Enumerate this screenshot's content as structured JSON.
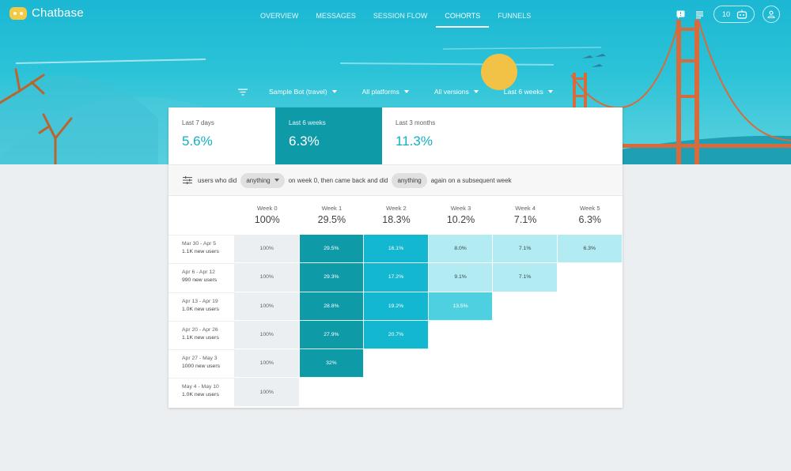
{
  "app": {
    "name": "Chatbase"
  },
  "nav": {
    "tabs": [
      "OVERVIEW",
      "MESSAGES",
      "SESSION FLOW",
      "COHORTS",
      "FUNNELS"
    ],
    "active": "COHORTS"
  },
  "topbar": {
    "bot_count": "10"
  },
  "filters": {
    "bot": "Sample Bot (travel)",
    "platform": "All platforms",
    "version": "All versions",
    "range": "Last 6 weeks"
  },
  "summary": [
    {
      "label": "Last 7 days",
      "value": "5.6%"
    },
    {
      "label": "Last 6 weeks",
      "value": "6.3%"
    },
    {
      "label": "Last 3 months",
      "value": "11.3%"
    }
  ],
  "summary_active": "Last 6 weeks",
  "query": {
    "prefix": "users who did",
    "first_action": "anything",
    "middle": "on week 0, then came back and did",
    "second_action": "anything",
    "suffix": "again on a subsequent week"
  },
  "weeks": [
    {
      "name": "Week 0",
      "pct": "100%"
    },
    {
      "name": "Week 1",
      "pct": "29.5%"
    },
    {
      "name": "Week 2",
      "pct": "18.3%"
    },
    {
      "name": "Week 3",
      "pct": "10.2%"
    },
    {
      "name": "Week 4",
      "pct": "7.1%"
    },
    {
      "name": "Week 5",
      "pct": "6.3%"
    }
  ],
  "cohorts": [
    {
      "dates": "Mar 30 - Apr 5",
      "users": "1.1K new users",
      "cells": [
        "100%",
        "29.5%",
        "16.1%",
        "8.0%",
        "7.1%",
        "6.3%"
      ]
    },
    {
      "dates": "Apr 6 - Apr 12",
      "users": "990 new users",
      "cells": [
        "100%",
        "29.3%",
        "17.2%",
        "9.1%",
        "7.1%"
      ]
    },
    {
      "dates": "Apr 13 - Apr 19",
      "users": "1.0K new users",
      "cells": [
        "100%",
        "28.8%",
        "19.2%",
        "13.5%"
      ]
    },
    {
      "dates": "Apr 20 - Apr 26",
      "users": "1.1K new users",
      "cells": [
        "100%",
        "27.9%",
        "20.7%"
      ]
    },
    {
      "dates": "Apr 27 - May 3",
      "users": "1000 new users",
      "cells": [
        "100%",
        "32%"
      ]
    },
    {
      "dates": "May 4 - May 10",
      "users": "1.0K new users",
      "cells": [
        "100%"
      ]
    }
  ],
  "colors": {
    "accent": "#13b0c5",
    "active_tab": "#0f9aa8",
    "week0_cell": "#eceff1",
    "heat_dark": "#0f9aa8",
    "heat_mid": "#13b7cf",
    "heat_light": "#b2ebf2"
  },
  "icons": [
    "chatbase-logo-icon",
    "feedback-icon",
    "list-icon",
    "bot-icon",
    "account-icon",
    "filter-list-icon",
    "tune-icon",
    "dropdown-caret-icon"
  ]
}
